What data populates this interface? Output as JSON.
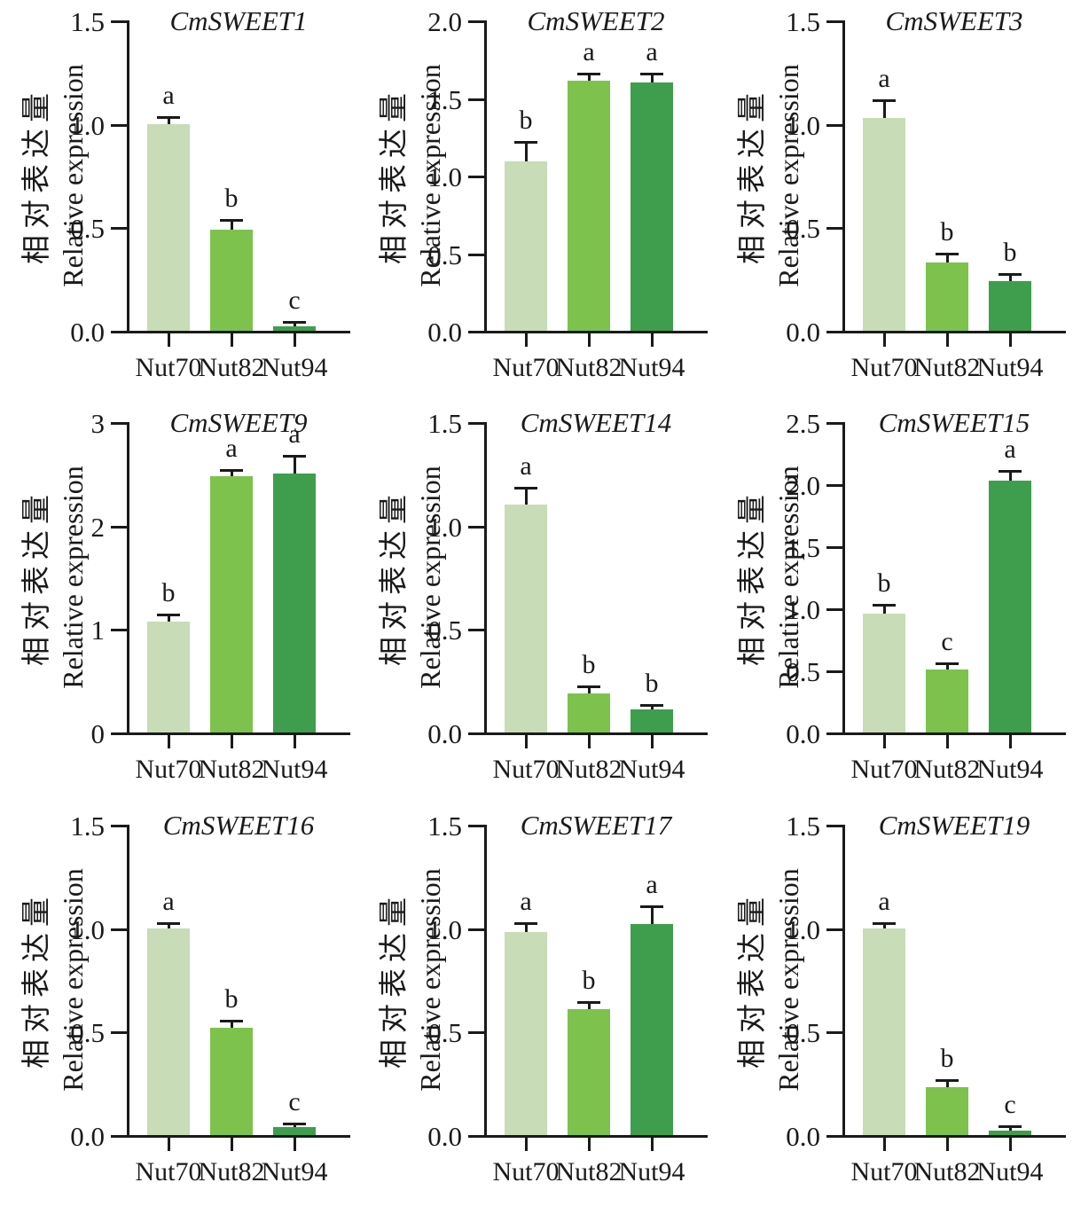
{
  "figure": {
    "background": "#ffffff",
    "axis_color": "#1a1a1a",
    "bar_colors": [
      "#c7dcb7",
      "#7cc24d",
      "#3f9e4d"
    ],
    "y_axis_title_zh": "相对表达量",
    "y_axis_title_en": "Relative expression",
    "categories": [
      "Nut70",
      "Nut82",
      "Nut94"
    ]
  },
  "chart_data": [
    {
      "type": "bar",
      "title": "CmSWEET1",
      "categories": [
        "Nut70",
        "Nut82",
        "Nut94"
      ],
      "values": [
        1.0,
        0.49,
        0.02
      ],
      "errors": [
        0.03,
        0.04,
        0.02
      ],
      "letters": [
        "a",
        "b",
        "c"
      ],
      "ylabel": "相对表达量 Relative expression",
      "ylim": [
        0,
        1.5
      ],
      "yticks": [
        "0.0",
        "0.5",
        "1.0",
        "1.5"
      ]
    },
    {
      "type": "bar",
      "title": "CmSWEET2",
      "categories": [
        "Nut70",
        "Nut82",
        "Nut94"
      ],
      "values": [
        1.09,
        1.61,
        1.6
      ],
      "errors": [
        0.12,
        0.04,
        0.05
      ],
      "letters": [
        "b",
        "a",
        "a"
      ],
      "ylabel": "相对表达量 Relative expression",
      "ylim": [
        0,
        2.0
      ],
      "yticks": [
        "0.0",
        "0.5",
        "1.0",
        "1.5",
        "2.0"
      ]
    },
    {
      "type": "bar",
      "title": "CmSWEET3",
      "categories": [
        "Nut70",
        "Nut82",
        "Nut94"
      ],
      "values": [
        1.03,
        0.33,
        0.24
      ],
      "errors": [
        0.08,
        0.04,
        0.03
      ],
      "letters": [
        "a",
        "b",
        "b"
      ],
      "ylabel": "相对表达量 Relative expression",
      "ylim": [
        0,
        1.5
      ],
      "yticks": [
        "0.0",
        "0.5",
        "1.0",
        "1.5"
      ]
    },
    {
      "type": "bar",
      "title": "CmSWEET9",
      "categories": [
        "Nut70",
        "Nut82",
        "Nut94"
      ],
      "values": [
        1.07,
        2.48,
        2.5
      ],
      "errors": [
        0.06,
        0.05,
        0.17
      ],
      "letters": [
        "b",
        "a",
        "a"
      ],
      "ylabel": "相对表达量 Relative expression",
      "ylim": [
        0,
        3
      ],
      "yticks": [
        "0",
        "1",
        "2",
        "3"
      ]
    },
    {
      "type": "bar",
      "title": "CmSWEET14",
      "categories": [
        "Nut70",
        "Nut82",
        "Nut94"
      ],
      "values": [
        1.1,
        0.19,
        0.11
      ],
      "errors": [
        0.08,
        0.03,
        0.02
      ],
      "letters": [
        "a",
        "b",
        "b"
      ],
      "ylabel": "相对表达量 Relative expression",
      "ylim": [
        0,
        1.5
      ],
      "yticks": [
        "0.0",
        "0.5",
        "1.0",
        "1.5"
      ]
    },
    {
      "type": "bar",
      "title": "CmSWEET15",
      "categories": [
        "Nut70",
        "Nut82",
        "Nut94"
      ],
      "values": [
        0.96,
        0.51,
        2.03
      ],
      "errors": [
        0.06,
        0.04,
        0.07
      ],
      "letters": [
        "b",
        "c",
        "a"
      ],
      "ylabel": "相对表达量 Relative expression",
      "ylim": [
        0,
        2.5
      ],
      "yticks": [
        "0.0",
        "0.5",
        "1.0",
        "1.5",
        "2.0",
        "2.5"
      ]
    },
    {
      "type": "bar",
      "title": "CmSWEET16",
      "categories": [
        "Nut70",
        "Nut82",
        "Nut94"
      ],
      "values": [
        1.0,
        0.52,
        0.04
      ],
      "errors": [
        0.02,
        0.03,
        0.01
      ],
      "letters": [
        "a",
        "b",
        "c"
      ],
      "ylabel": "相对表达量 Relative expression",
      "ylim": [
        0,
        1.5
      ],
      "yticks": [
        "0.0",
        "0.5",
        "1.0",
        "1.5"
      ]
    },
    {
      "type": "bar",
      "title": "CmSWEET17",
      "categories": [
        "Nut70",
        "Nut82",
        "Nut94"
      ],
      "values": [
        0.98,
        0.61,
        1.02
      ],
      "errors": [
        0.04,
        0.03,
        0.08
      ],
      "letters": [
        "a",
        "b",
        "a"
      ],
      "ylabel": "相对表达量 Relative expression",
      "ylim": [
        0,
        1.5
      ],
      "yticks": [
        "0.0",
        "0.5",
        "1.0",
        "1.5"
      ]
    },
    {
      "type": "bar",
      "title": "CmSWEET19",
      "categories": [
        "Nut70",
        "Nut82",
        "Nut94"
      ],
      "values": [
        1.0,
        0.23,
        0.02
      ],
      "errors": [
        0.02,
        0.03,
        0.02
      ],
      "letters": [
        "a",
        "b",
        "c"
      ],
      "ylabel": "相对表达量 Relative expression",
      "ylim": [
        0,
        1.5
      ],
      "yticks": [
        "0.0",
        "0.5",
        "1.0",
        "1.5"
      ]
    }
  ]
}
